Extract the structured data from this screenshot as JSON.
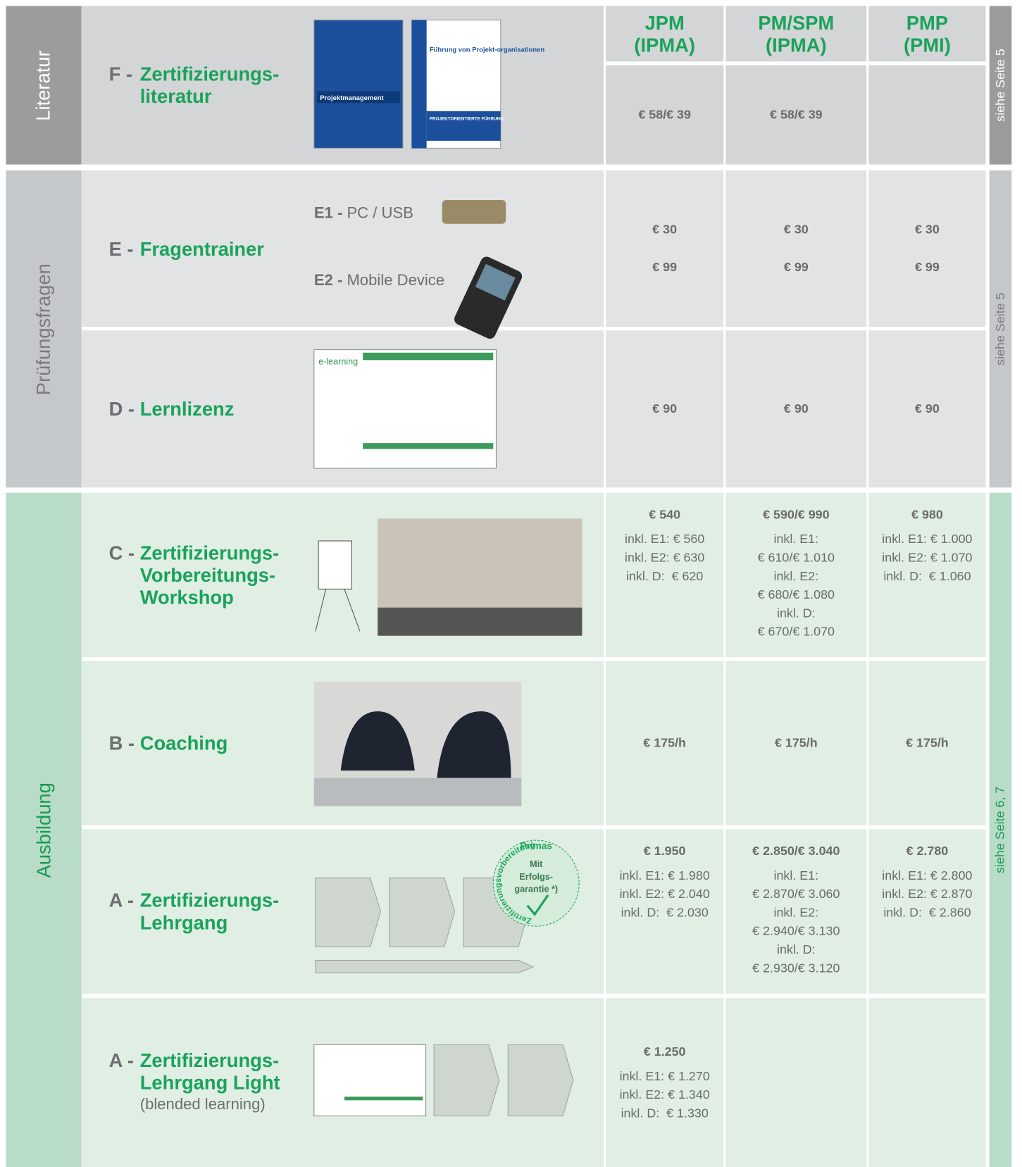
{
  "header": {
    "columns": [
      [
        "JPM",
        "(IPMA)"
      ],
      [
        "PM/SPM",
        "(IPMA)"
      ],
      [
        "PMP",
        "(PMI)"
      ]
    ]
  },
  "sections": [
    {
      "label": "Literatur",
      "ref": "siehe Seite 5",
      "rows": [
        {
          "code": "F -",
          "title": [
            "Zertifizierungs-",
            "literatur"
          ],
          "image_texts": [
            "Projektmanagement",
            "Führung von Projekt-organisationen",
            "PROJEKTORIENTIERTE FÜHRUNG"
          ],
          "prices": [
            {
              "lines": [
                "€ 58/€ 39"
              ]
            },
            {
              "lines": [
                "€ 58/€ 39"
              ]
            },
            {
              "lines": []
            }
          ]
        }
      ]
    },
    {
      "label": "Prüfungsfragen",
      "ref": "siehe Seite 5",
      "rows": [
        {
          "code": "E -",
          "title": [
            "Fragentrainer"
          ],
          "items": [
            {
              "code": "E1 -",
              "label": "PC / USB"
            },
            {
              "code": "E2 -",
              "label": "Mobile Device"
            }
          ],
          "prices": [
            {
              "lines": [
                "€ 30",
                "€ 99"
              ]
            },
            {
              "lines": [
                "€ 30",
                "€ 99"
              ]
            },
            {
              "lines": [
                "€ 30",
                "€ 99"
              ]
            }
          ]
        },
        {
          "code": "D -",
          "title": [
            "Lernlizenz"
          ],
          "image_texts": [
            "e-learning"
          ],
          "prices": [
            {
              "lines": [
                "€ 90"
              ]
            },
            {
              "lines": [
                "€ 90"
              ]
            },
            {
              "lines": [
                "€ 90"
              ]
            }
          ]
        }
      ]
    },
    {
      "label": "Ausbildung",
      "ref": "siehe Seite 6, 7",
      "rows": [
        {
          "code": "C -",
          "title": [
            "Zertifizierungs-",
            "Vorbereitungs-",
            "Workshop"
          ],
          "prices": [
            {
              "lines": [
                "€ 540"
              ],
              "details": [
                "inkl. E1: € 560",
                "inkl. E2: € 630",
                "inkl. D:  € 620"
              ]
            },
            {
              "lines": [
                "€ 590/€ 990"
              ],
              "details": [
                "inkl. E1:",
                "€ 610/€ 1.010",
                "inkl. E2:",
                "€ 680/€ 1.080",
                "inkl. D:",
                "€ 670/€ 1.070"
              ]
            },
            {
              "lines": [
                "€ 980"
              ],
              "details": [
                "inkl. E1: € 1.000",
                "inkl. E2: € 1.070",
                "inkl. D:  € 1.060"
              ]
            }
          ]
        },
        {
          "code": "B -",
          "title": [
            "Coaching"
          ],
          "prices": [
            {
              "lines": [
                "€ 175/h"
              ]
            },
            {
              "lines": [
                "€ 175/h"
              ]
            },
            {
              "lines": [
                "€ 175/h"
              ]
            }
          ]
        },
        {
          "code": "A -",
          "title": [
            "Zertifizierungs-",
            "Lehrgang"
          ],
          "badge": {
            "top": "Primas",
            "center": [
              "Mit",
              "Erfolgs-",
              "garantie *)"
            ],
            "ring": "Zertifizierungsvorbereitung"
          },
          "prices": [
            {
              "lines": [
                "€ 1.950"
              ],
              "details": [
                "inkl. E1: € 1.980",
                "inkl. E2: € 2.040",
                "inkl. D:  € 2.030"
              ]
            },
            {
              "lines": [
                "€ 2.850/€ 3.040"
              ],
              "details": [
                "inkl. E1:",
                "€ 2.870/€ 3.060",
                "inkl. E2:",
                "€ 2.940/€ 3.130",
                "inkl. D:",
                "€ 2.930/€ 3.120"
              ]
            },
            {
              "lines": [
                "€ 2.780"
              ],
              "details": [
                "inkl. E1: € 2.800",
                "inkl. E2: € 2.870",
                "inkl. D:  € 2.860"
              ]
            }
          ]
        },
        {
          "code": "A -",
          "title": [
            "Zertifizierungs-",
            "Lehrgang Light"
          ],
          "subtitle": "(blended learning)",
          "prices": [
            {
              "lines": [
                "€ 1.250"
              ],
              "details": [
                "inkl. E1: € 1.270",
                "inkl. E2: € 1.340",
                "inkl. D:  € 1.330"
              ]
            },
            {
              "lines": []
            },
            {
              "lines": []
            }
          ]
        }
      ]
    }
  ]
}
